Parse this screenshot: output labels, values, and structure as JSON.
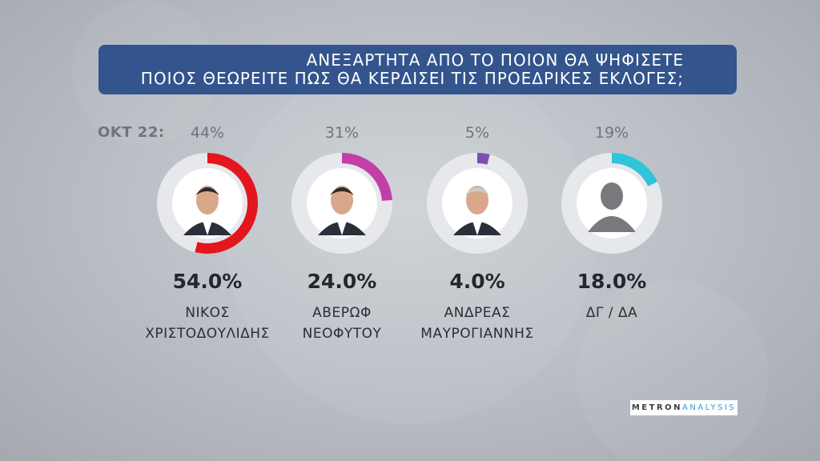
{
  "header": {
    "line1": "ΑΝΕΞΑΡΤΗΤΑ ΑΠΟ ΤΟ ΠΟΙΟΝ ΘΑ ΨΗΦΙΣΕΤΕ",
    "line2": "ΠΟΙΟΣ ΘΕΩΡΕΙΤΕ ΠΩΣ ΘΑ ΚΕΡΔΙΣΕΙ ΤΙΣ ΠΡΟΕΔΡΙΚΕΣ ΕΚΛΟΓΕΣ;"
  },
  "chart_data": {
    "type": "pie",
    "title": "ΑΝΕΞΑΡΤΗΤΑ ΑΠΟ ΤΟ ΠΟΙΟΝ ΘΑ ΨΗΦΙΣΕΤΕ ΠΟΙΟΣ ΘΕΩΡΕΙΤΕ ΠΩΣ ΘΑ ΚΕΡΔΙΣΕΙ ΤΙΣ ΠΡΟΕΔΡΙΚΕΣ ΕΚΛΟΓΕΣ;",
    "previous_label": "ΟΚΤ 22:",
    "categories": [
      {
        "name_line1": "ΝΙΚΟΣ",
        "name_line2": "ΧΡΙΣΤΟΔΟΥΛΙΔΗΣ",
        "value": 54.0,
        "value_label": "54.0%",
        "previous": 44,
        "previous_label": "44%",
        "color": "#e3161d",
        "avatar": "photo"
      },
      {
        "name_line1": "ΑΒΕΡΩΦ",
        "name_line2": "ΝΕΟΦΥΤΟΥ",
        "value": 24.0,
        "value_label": "24.0%",
        "previous": 31,
        "previous_label": "31%",
        "color": "#c23fa8",
        "avatar": "photo"
      },
      {
        "name_line1": "ΑΝΔΡΕΑΣ",
        "name_line2": "ΜΑΥΡΟΓΙΑΝΝΗΣ",
        "value": 4.0,
        "value_label": "4.0%",
        "previous": 5,
        "previous_label": "5%",
        "color": "#7a4fb3",
        "avatar": "photo"
      },
      {
        "name_line1": "ΔΓ / ΔΑ",
        "name_line2": "",
        "value": 18.0,
        "value_label": "18.0%",
        "previous": 19,
        "previous_label": "19%",
        "color": "#2fc4d9",
        "avatar": "silhouette-icon"
      }
    ]
  },
  "logo": {
    "part1": "METRON",
    "part2": "ANALYSIS"
  }
}
